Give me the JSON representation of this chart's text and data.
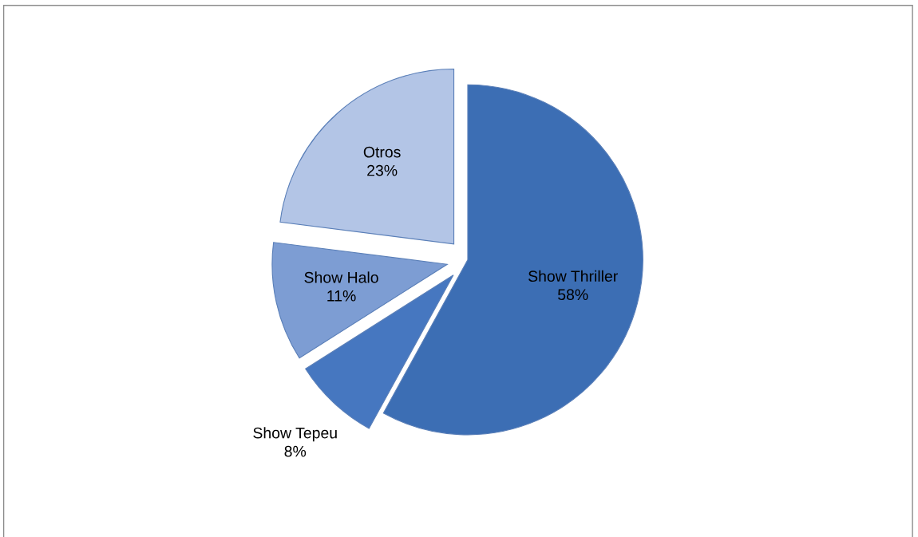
{
  "chart_data": {
    "type": "pie",
    "categories": [
      "Show Thriller",
      "Show Tepeu",
      "Show Halo",
      "Otros"
    ],
    "values": [
      58,
      8,
      11,
      23
    ],
    "value_labels": [
      "58%",
      "8%",
      "11%",
      "23%"
    ],
    "colors": [
      "#3c6eb4",
      "#4677c0",
      "#7d9dd3",
      "#b3c5e6"
    ],
    "legend": false
  }
}
